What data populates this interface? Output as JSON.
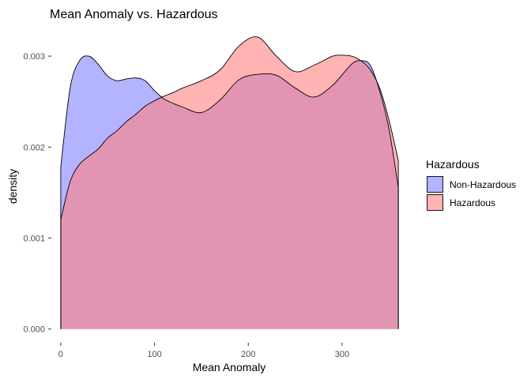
{
  "chart_data": {
    "type": "area",
    "title": "Mean Anomaly vs. Hazardous",
    "xlabel": "Mean Anomaly",
    "ylabel": "density",
    "xlim": [
      -10,
      370
    ],
    "ylim": [
      -0.00015,
      0.00327
    ],
    "x_ticks": [
      0,
      100,
      200,
      300
    ],
    "y_ticks": [
      0.0,
      0.001,
      0.002,
      0.003
    ],
    "x_tick_labels": [
      "0",
      "100",
      "200",
      "300"
    ],
    "y_tick_labels": [
      "0.000",
      "0.001",
      "0.002",
      "0.003"
    ],
    "grid": false,
    "legend": {
      "title": "Hazardous",
      "position": "right"
    },
    "overlap_color": "#cc7fb4",
    "series": [
      {
        "name": "Non-Hazardous",
        "color": "#8080ff",
        "fill_opacity": 0.6,
        "x": [
          0,
          10,
          20,
          30,
          40,
          50,
          60,
          70,
          80,
          90,
          100,
          110,
          120,
          130,
          150,
          170,
          190,
          210,
          230,
          250,
          270,
          290,
          310,
          320,
          330,
          340,
          350,
          360
        ],
        "y": [
          0.00178,
          0.00265,
          0.00295,
          0.003,
          0.00291,
          0.00278,
          0.00273,
          0.00275,
          0.00276,
          0.00273,
          0.00262,
          0.00253,
          0.00248,
          0.00244,
          0.00238,
          0.00252,
          0.00274,
          0.0028,
          0.00279,
          0.00265,
          0.00255,
          0.00268,
          0.00291,
          0.00295,
          0.0029,
          0.00262,
          0.0022,
          0.00155
        ]
      },
      {
        "name": "Hazardous",
        "color": "#ff8080",
        "fill_opacity": 0.6,
        "x": [
          0,
          10,
          20,
          30,
          40,
          50,
          60,
          70,
          80,
          90,
          100,
          110,
          120,
          130,
          150,
          170,
          190,
          210,
          230,
          250,
          270,
          290,
          300,
          310,
          320,
          330,
          340,
          350,
          360
        ],
        "y": [
          0.0012,
          0.00162,
          0.00181,
          0.0019,
          0.00198,
          0.0021,
          0.00218,
          0.00228,
          0.00236,
          0.00245,
          0.00251,
          0.00256,
          0.0026,
          0.00265,
          0.00273,
          0.00285,
          0.00311,
          0.00321,
          0.003,
          0.00283,
          0.0029,
          0.003,
          0.00301,
          0.003,
          0.00295,
          0.00285,
          0.00265,
          0.0023,
          0.00185
        ]
      }
    ]
  }
}
